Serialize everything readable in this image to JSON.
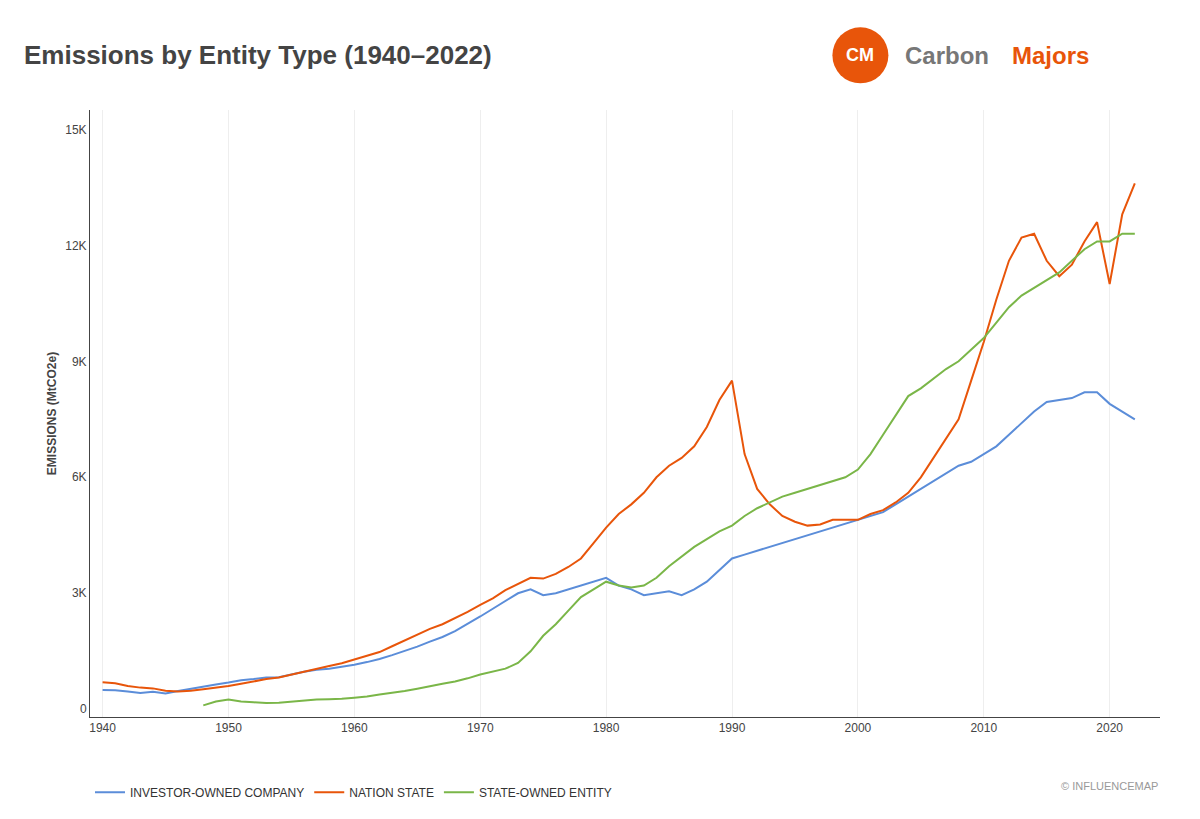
{
  "chart_data": {
    "type": "line",
    "title": "Emissions by Entity Type (1940–2022)",
    "ylabel": "EMISSIONS (MtCO2e)",
    "annotations": [
      "© INFLUENCEMAP",
      "CM",
      "Carbon",
      "Majors"
    ],
    "x": [
      1940,
      1941,
      1942,
      1943,
      1944,
      1945,
      1946,
      1947,
      1948,
      1949,
      1950,
      1951,
      1952,
      1953,
      1954,
      1955,
      1956,
      1957,
      1958,
      1959,
      1960,
      1961,
      1962,
      1963,
      1964,
      1965,
      1966,
      1967,
      1968,
      1969,
      1970,
      1971,
      1972,
      1973,
      1974,
      1975,
      1976,
      1977,
      1978,
      1979,
      1980,
      1981,
      1982,
      1983,
      1984,
      1985,
      1986,
      1987,
      1988,
      1989,
      1990,
      1991,
      1992,
      1993,
      1994,
      1995,
      1996,
      1997,
      1998,
      1999,
      2000,
      2001,
      2002,
      2003,
      2004,
      2005,
      2006,
      2007,
      2008,
      2009,
      2010,
      2011,
      2012,
      2013,
      2014,
      2015,
      2016,
      2017,
      2018,
      2019,
      2020,
      2021,
      2022
    ],
    "series": [
      {
        "name": "INVESTOR-OWNED COMPANY",
        "color": "#5B8DD9",
        "values": [
          500,
          490,
          460,
          420,
          450,
          410,
          470,
          530,
          590,
          640,
          690,
          750,
          780,
          820,
          830,
          900,
          970,
          1020,
          1050,
          1100,
          1150,
          1220,
          1300,
          1400,
          1500,
          1620,
          1750,
          1870,
          2020,
          2200,
          2400,
          2600,
          2800,
          3000,
          3100,
          2950,
          3000,
          3100,
          3200,
          3300,
          3400,
          3200,
          3100,
          2950,
          3000,
          3050,
          2950,
          3100,
          3300,
          3600,
          3900,
          4000,
          4100,
          4200,
          4300,
          4400,
          4500,
          4600,
          4700,
          4800,
          4900,
          5000,
          5100,
          5300,
          5500,
          5700,
          5900,
          6100,
          6300,
          6400,
          6600,
          6800,
          7100,
          7400,
          7700,
          7950,
          8000,
          8050,
          8200,
          8200,
          7900,
          7700,
          7500
        ]
      },
      {
        "name": "NATION STATE",
        "color": "#E8550A",
        "values": [
          700,
          670,
          600,
          560,
          540,
          480,
          460,
          480,
          520,
          560,
          600,
          660,
          720,
          780,
          820,
          900,
          980,
          1050,
          1120,
          1190,
          1280,
          1380,
          1480,
          1630,
          1780,
          1940,
          2080,
          2200,
          2350,
          2520,
          2700,
          2870,
          3080,
          3250,
          3400,
          3380,
          3500,
          3680,
          3900,
          4300,
          4700,
          5050,
          5300,
          5600,
          6000,
          6300,
          6500,
          6800,
          7300,
          8000,
          8500,
          6600,
          5700,
          5300,
          5000,
          4850,
          4750,
          4780,
          4900,
          4900,
          4900,
          5050,
          5150,
          5350,
          5600,
          6000,
          6500,
          7000,
          7500,
          8500,
          9500,
          10600,
          11600,
          12200,
          12300,
          11600,
          11200,
          11500,
          12100,
          12600,
          11000,
          12800,
          13600
        ]
      },
      {
        "name": "STATE-OWNED ENTITY",
        "color": "#7AB648",
        "values": [
          null,
          null,
          null,
          null,
          null,
          null,
          null,
          null,
          100,
          200,
          250,
          200,
          180,
          160,
          170,
          200,
          230,
          250,
          260,
          270,
          300,
          330,
          380,
          420,
          470,
          530,
          600,
          660,
          720,
          800,
          900,
          980,
          1050,
          1200,
          1500,
          1900,
          2200,
          2550,
          2900,
          3100,
          3300,
          3200,
          3150,
          3200,
          3400,
          3700,
          3950,
          4200,
          4400,
          4600,
          4750,
          5000,
          5200,
          5350,
          5500,
          5600,
          5700,
          5800,
          5900,
          6000,
          6200,
          6600,
          7100,
          7600,
          8100,
          8300,
          8550,
          8800,
          9000,
          9300,
          9600,
          10000,
          10400,
          10700,
          10900,
          11100,
          11300,
          11600,
          11900,
          12100,
          12100,
          12300,
          12300
        ]
      }
    ],
    "xlim": [
      1939,
      2024
    ],
    "xticks": [
      1940,
      1950,
      1960,
      1970,
      1980,
      1990,
      2000,
      2010,
      2020
    ],
    "ylim": [
      -200,
      15500
    ],
    "yticks": [
      0,
      {
        "value": 3000,
        "label": "3K"
      },
      {
        "value": 6000,
        "label": "6K"
      },
      {
        "value": 9000,
        "label": "9K"
      },
      {
        "value": 12000,
        "label": "12K"
      },
      {
        "value": 15000,
        "label": "15K"
      }
    ],
    "grid": "x",
    "legend": "lower left"
  }
}
